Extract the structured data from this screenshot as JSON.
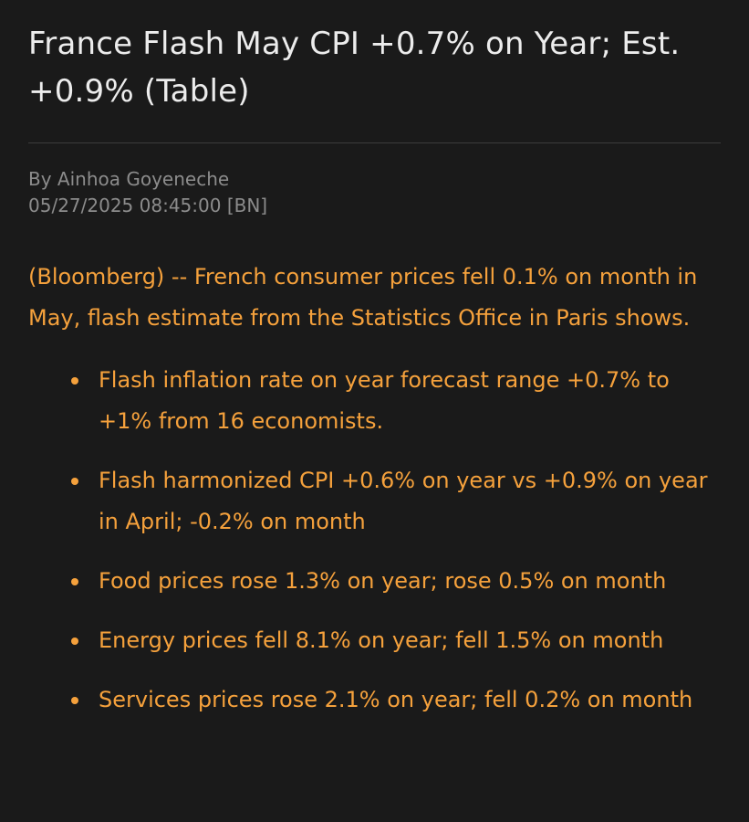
{
  "article": {
    "headline": "France Flash May CPI +0.7% on Year; Est. +0.9% (Table)",
    "byline": "By Ainhoa Goyeneche",
    "timestamp": "05/27/2025 08:45:00 [BN]",
    "lede": "(Bloomberg) -- French consumer prices fell 0.1% on month in May, flash estimate from the Statistics Office in Paris shows.",
    "bullets": [
      "Flash inflation rate on year forecast range +0.7% to +1% from 16 economists.",
      "Flash harmonized CPI +0.6% on year vs +0.9% on year in April; -0.2% on month",
      "Food prices rose 1.3% on year; rose 0.5% on month",
      "Energy prices fell 8.1% on year; fell 1.5% on month",
      "Services prices rose 2.1% on year; fell 0.2% on month"
    ]
  },
  "colors": {
    "background": "#1a1a1a",
    "headline": "#ececec",
    "meta": "#8c8c8c",
    "body": "#f5a13c"
  }
}
